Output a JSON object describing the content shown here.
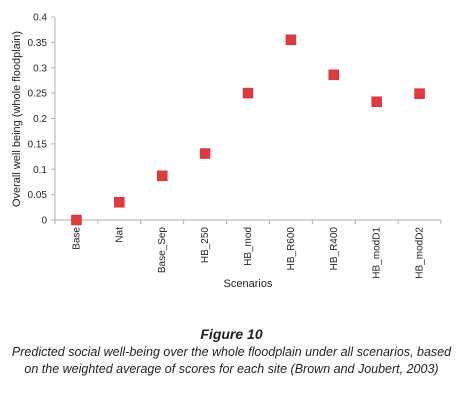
{
  "chart_data": {
    "type": "scatter",
    "categories": [
      "Base",
      "Nat",
      "Base_Sep",
      "HB_250",
      "HB_mod",
      "HB_R600",
      "HB_R400",
      "HB_modD1",
      "HB_modD2"
    ],
    "values": [
      0.0,
      0.035,
      0.087,
      0.131,
      0.25,
      0.355,
      0.286,
      0.233,
      0.249
    ],
    "xlabel": "Scenarios",
    "ylabel": "Overall well being (whole floodplain)",
    "ylim": [
      0,
      0.4
    ],
    "yticks": [
      "0",
      "0.05",
      "0.1",
      "0.15",
      "0.2",
      "0.25",
      "0.3",
      "0.35",
      "0.4"
    ],
    "yticks_values": [
      0,
      0.05,
      0.1,
      0.15,
      0.2,
      0.25,
      0.3,
      0.35,
      0.4
    ],
    "grid": false,
    "legend": "none",
    "marker": "square",
    "marker_color": "#e03a3e"
  },
  "caption": {
    "label": "Figure 10",
    "text": "Predicted social well-being over the whole floodplain under all scenarios, based on the weighted average of scores for each site (Brown and Joubert, 2003)"
  }
}
